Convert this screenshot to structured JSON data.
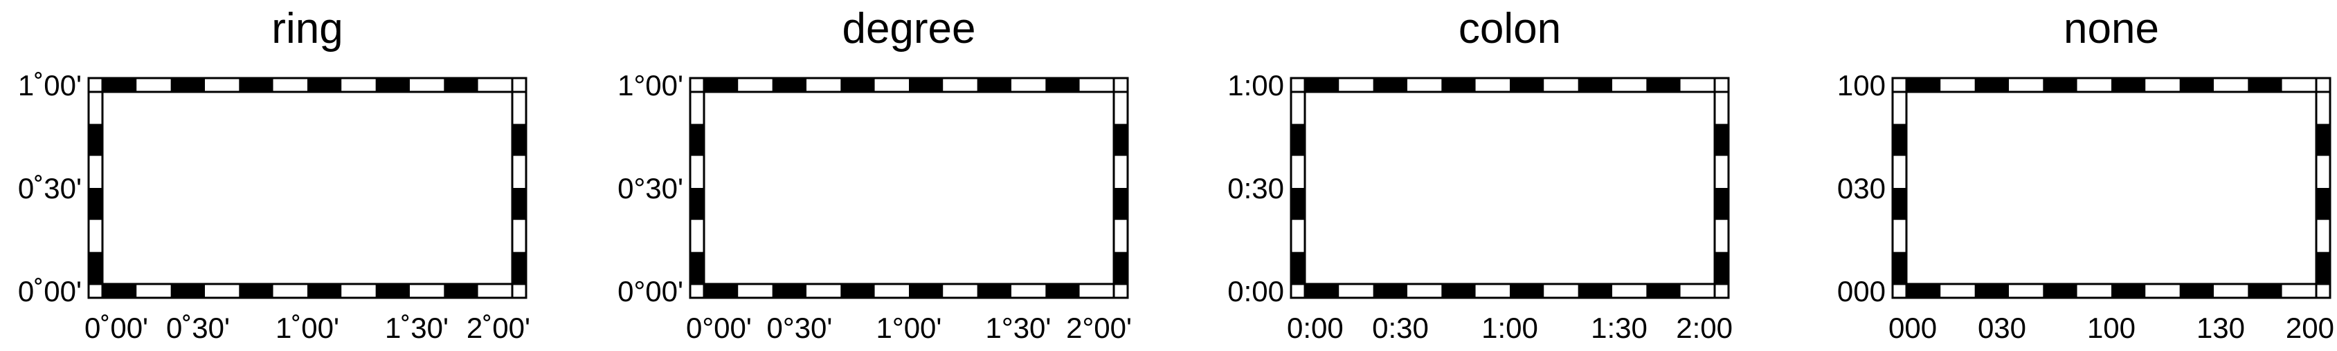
{
  "colors": {
    "frame": "#000000",
    "fill": "#ffffff"
  },
  "panels": [
    {
      "title": "ring",
      "x_ticks": [
        "0˚00'",
        "0˚30'",
        "1˚00'",
        "1˚30'",
        "2˚00'"
      ],
      "y_ticks": [
        "0˚00'",
        "0˚30'",
        "1˚00'"
      ]
    },
    {
      "title": "degree",
      "x_ticks": [
        "0°00'",
        "0°30'",
        "1°00'",
        "1°30'",
        "2°00'"
      ],
      "y_ticks": [
        "0°00'",
        "0°30'",
        "1°00'"
      ]
    },
    {
      "title": "colon",
      "x_ticks": [
        "0:00",
        "0:30",
        "1:00",
        "1:30",
        "2:00"
      ],
      "y_ticks": [
        "0:00",
        "0:30",
        "1:00"
      ]
    },
    {
      "title": "none",
      "x_ticks": [
        "000",
        "030",
        "100",
        "130",
        "200"
      ],
      "y_ticks": [
        "000",
        "030",
        "100"
      ]
    }
  ]
}
